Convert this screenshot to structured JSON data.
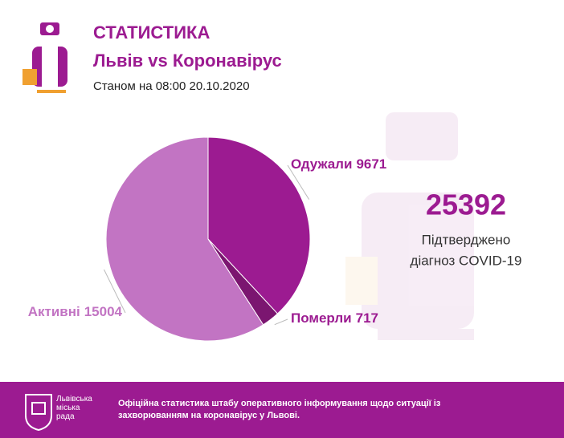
{
  "header": {
    "title": "СТАТИСТИКА",
    "subtitle": "Львів vs Коронавірус",
    "date": "Станом на 08:00 20.10.2020"
  },
  "chart_data": {
    "type": "pie",
    "categories": [
      "Одужали",
      "Померли",
      "Активні"
    ],
    "values": [
      9671,
      717,
      15004
    ],
    "colors": [
      "#9c1b91",
      "#7b1670",
      "#c274c3"
    ]
  },
  "total": {
    "value": 25392,
    "label_lines": [
      "Підтверджено",
      "діагноз COVID-19"
    ]
  },
  "footer": {
    "logo_lines": [
      "Львівська",
      "міська",
      "рада"
    ],
    "text": "Офіційна статистика штабу оперативного інформування щодо ситуації із захворюванням на коронавірус у Львові."
  }
}
